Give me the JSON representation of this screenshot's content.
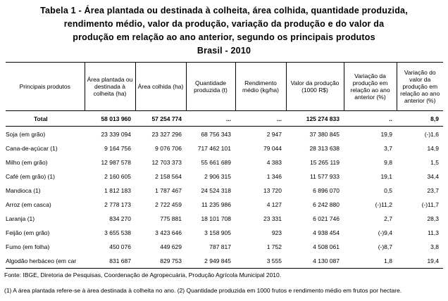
{
  "title_lines": [
    "Tabela 1 - Área plantada ou destinada à colheita, área colhida, quantidade produzida,",
    "rendimento médio, valor da produção, variação da produção e do valor da",
    "produção em relação ao ano anterior, segundo os principais produtos",
    "Brasil - 2010"
  ],
  "headers": [
    "Principais produtos",
    "Área plantada ou destinada à colheita (ha)",
    "Área colhida (ha)",
    "Quantidade produzida (t)",
    "Rendimento médio (kg/ha)",
    "Valor da produção (1000 R$)",
    "Variação da produção em relação ao ano anterior (%)",
    "Variação do valor da produção em relação ao ano anterior (%)"
  ],
  "total_row": [
    "Total",
    "58 013 960",
    "57 254 774",
    "...",
    "...",
    "125 274 833",
    "..",
    "8,9"
  ],
  "rows": [
    [
      "Soja (em grão)",
      "23 339 094",
      "23 327 296",
      "68 756 343",
      "2 947",
      "37 380 845",
      "19,9",
      "(-)1,6"
    ],
    [
      "Cana-de-açúcar (1)",
      "9 164 756",
      "9 076 706",
      "717 462 101",
      "79 044",
      "28 313 638",
      "3,7",
      "14,9"
    ],
    [
      "Milho (em grão)",
      "12 987 578",
      "12 703 373",
      "55 661 689",
      "4 383",
      "15 265 119",
      "9,8",
      "1,5"
    ],
    [
      "Café (em grão) (1)",
      "2 160 605",
      "2 158 564",
      "2 906 315",
      "1 346",
      "11 577 933",
      "19,1",
      "34,4"
    ],
    [
      "Mandioca (1)",
      "1 812 183",
      "1 787 467",
      "24 524 318",
      "13 720",
      "6 896 070",
      "0,5",
      "23,7"
    ],
    [
      "Arroz (em casca)",
      "2 778 173",
      "2 722 459",
      "11 235 986",
      "4 127",
      "6 242 880",
      "(-)11,2",
      "(-)11,7"
    ],
    [
      "Laranja (1)",
      "834 270",
      "775 881",
      "18 101 708",
      "23 331",
      "6 021 746",
      "2,7",
      "28,3"
    ],
    [
      "Feijão (em grão)",
      "3 655 538",
      "3 423 646",
      "3 158 905",
      "923",
      "4 938 454",
      "(-)9,4",
      "11,3"
    ],
    [
      "Fumo (em folha)",
      "450 076",
      "449 629",
      "787 817",
      "1 752",
      "4 508 061",
      "(-)8,7",
      "3,8"
    ],
    [
      "Algodão herbáceo (em car",
      "831 687",
      "829 753",
      "2 949 845",
      "3 555",
      "4 130 087",
      "1,8",
      "19,4"
    ]
  ],
  "source": "Fonte: IBGE, Diretoria de Pesquisas, Coordenação de Agropecuária, Produção Agrícola Municipal 2010.",
  "note": "(1) A área plantada refere-se à área destinada à colheita no ano. (2) Quantidade produzida em 1000 frutos e rendimento médio em frutos por hectare."
}
